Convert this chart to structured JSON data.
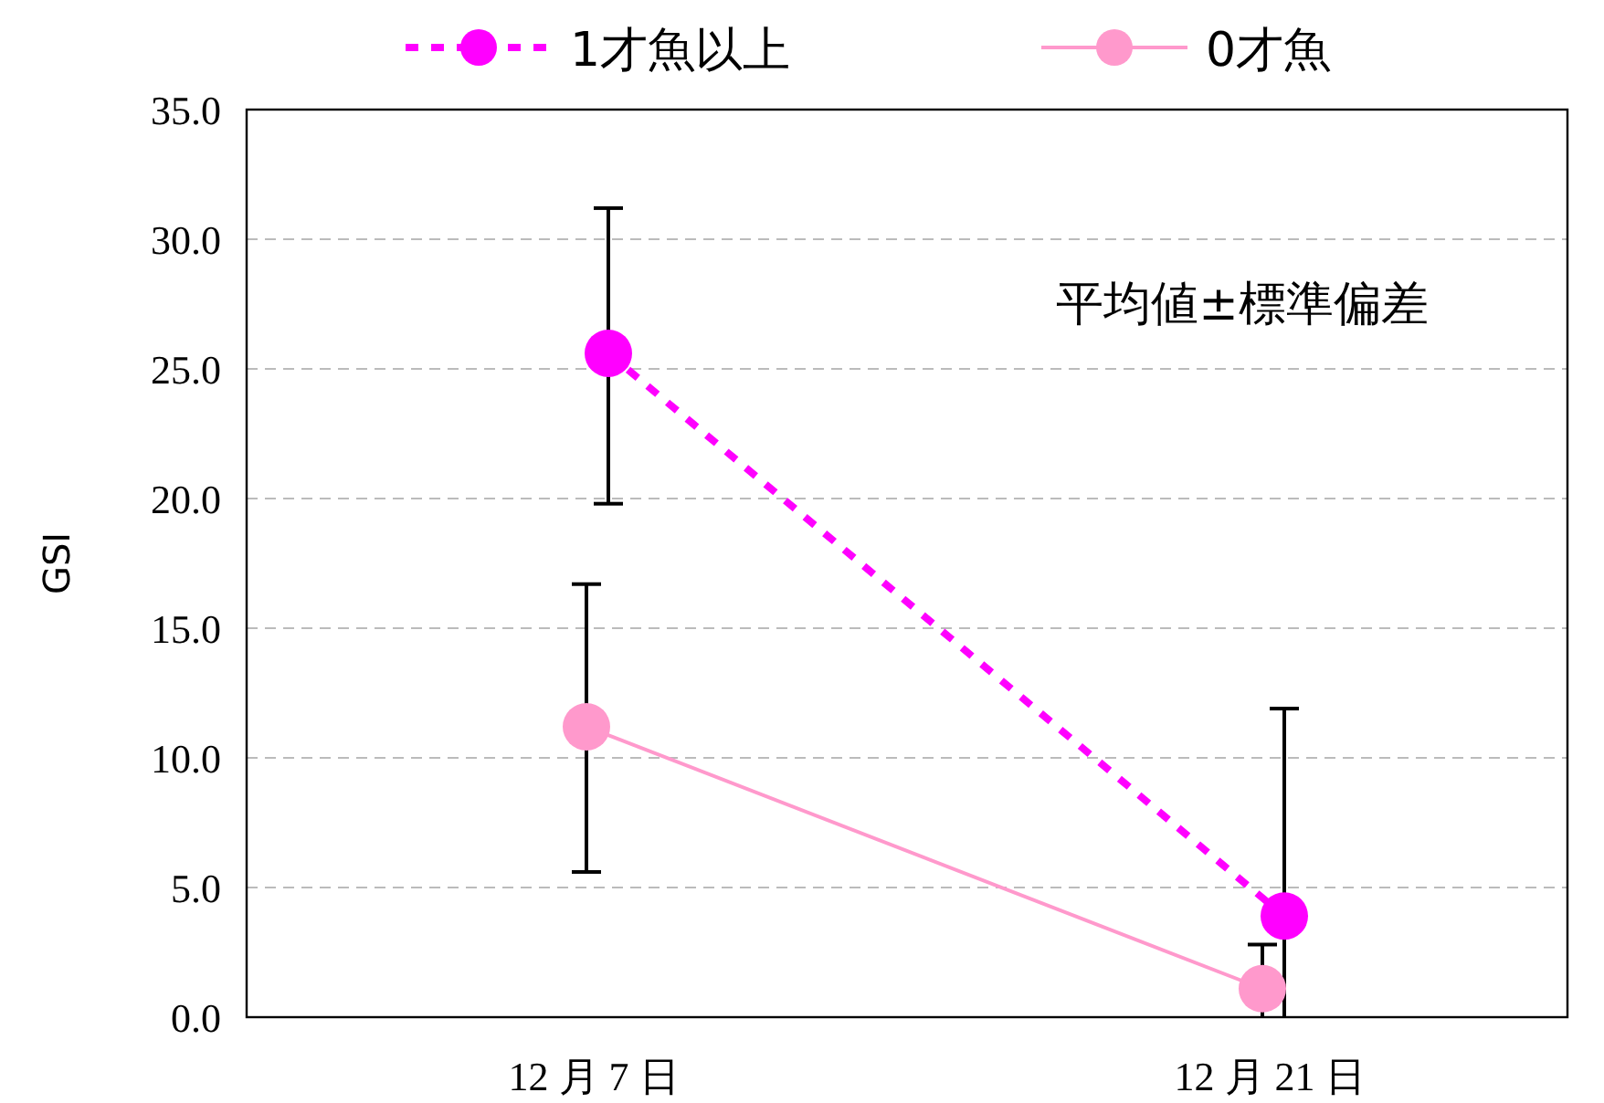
{
  "chart_data": {
    "type": "line",
    "ylabel": "GSI",
    "categories": [
      "12 月 7 日",
      "12 月 21 日"
    ],
    "series": [
      {
        "name": "1才魚以上",
        "color": "#ff00ff",
        "values": [
          25.6,
          3.9
        ],
        "errors": [
          [
            19.8,
            31.2
          ],
          [
            0.0,
            11.9
          ]
        ],
        "line_style": "dashed",
        "marker": "circle"
      },
      {
        "name": "0才魚",
        "color": "#ff99cc",
        "values": [
          11.2,
          1.1
        ],
        "errors": [
          [
            5.6,
            16.7
          ],
          [
            0.0,
            2.8
          ]
        ],
        "line_style": "solid",
        "marker": "circle"
      }
    ],
    "ylim": [
      0,
      35
    ],
    "yticks": [
      {
        "value": 0,
        "label": "0.0"
      },
      {
        "value": 5,
        "label": "5.0"
      },
      {
        "value": 10,
        "label": "10.0"
      },
      {
        "value": 15,
        "label": "15.0"
      },
      {
        "value": 20,
        "label": "20.0"
      },
      {
        "value": 25,
        "label": "25.0"
      },
      {
        "value": 30,
        "label": "30.0"
      },
      {
        "value": 35,
        "label": "35.0"
      }
    ],
    "grid": "y",
    "legend": "top",
    "annotations": [
      "平均値±標準偏差"
    ]
  }
}
